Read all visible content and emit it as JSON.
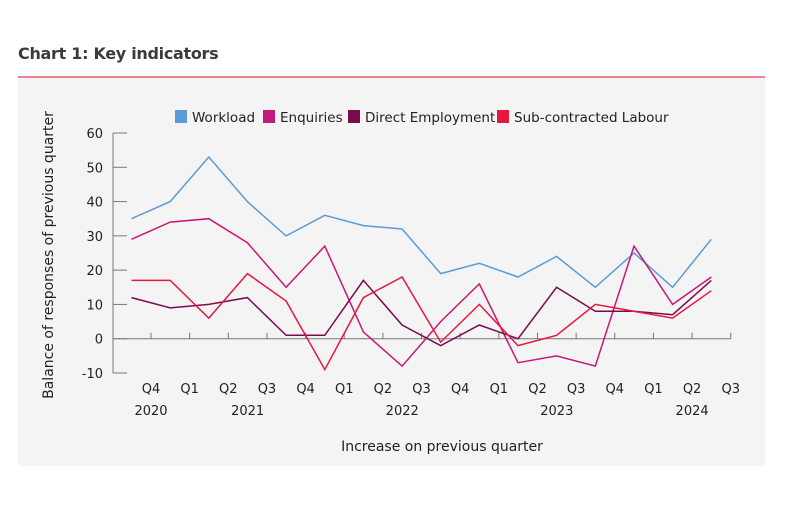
{
  "header": {
    "title": "Chart 1: Key indicators"
  },
  "chart_data": {
    "type": "line",
    "title": "",
    "xlabel": "Increase on previous quarter",
    "ylabel": "Balance of responses of previous quarter",
    "ylim": [
      -10,
      60
    ],
    "yticks": [
      -10,
      0,
      10,
      20,
      30,
      40,
      50,
      60
    ],
    "legend_position": "top",
    "grid": false,
    "x_tick_labels": [
      "Q4",
      "Q1",
      "Q2",
      "Q3",
      "Q4",
      "Q1",
      "Q2",
      "Q3",
      "Q4",
      "Q1",
      "Q2",
      "Q3",
      "Q4",
      "Q1",
      "Q2",
      "Q3"
    ],
    "year_labels": [
      {
        "label": "2020",
        "index": 0
      },
      {
        "label": "2021",
        "index": 2.5
      },
      {
        "label": "2022",
        "index": 6.5
      },
      {
        "label": "2023",
        "index": 10.5
      },
      {
        "label": "2024",
        "index": 14
      }
    ],
    "series": [
      {
        "name": "Workload",
        "color": "#5b9bd5",
        "values": [
          35,
          40,
          53,
          40,
          30,
          36,
          33,
          32,
          19,
          22,
          18,
          24,
          15,
          25,
          15,
          29
        ]
      },
      {
        "name": "Enquiries",
        "color": "#c8177a",
        "values": [
          29,
          34,
          35,
          28,
          15,
          27,
          2,
          -8,
          5,
          16,
          -7,
          -5,
          -8,
          27,
          10,
          18
        ]
      },
      {
        "name": "Direct Employment",
        "color": "#7a0c4e",
        "values": [
          12,
          9,
          10,
          12,
          1,
          1,
          17,
          4,
          -2,
          4,
          0,
          15,
          8,
          8,
          7,
          17
        ]
      },
      {
        "name": "Sub-contracted Labour",
        "color": "#e8173f",
        "values": [
          17,
          17,
          6,
          19,
          11,
          -9,
          12,
          18,
          -1,
          10,
          -2,
          1,
          10,
          8,
          6,
          14
        ]
      }
    ]
  }
}
